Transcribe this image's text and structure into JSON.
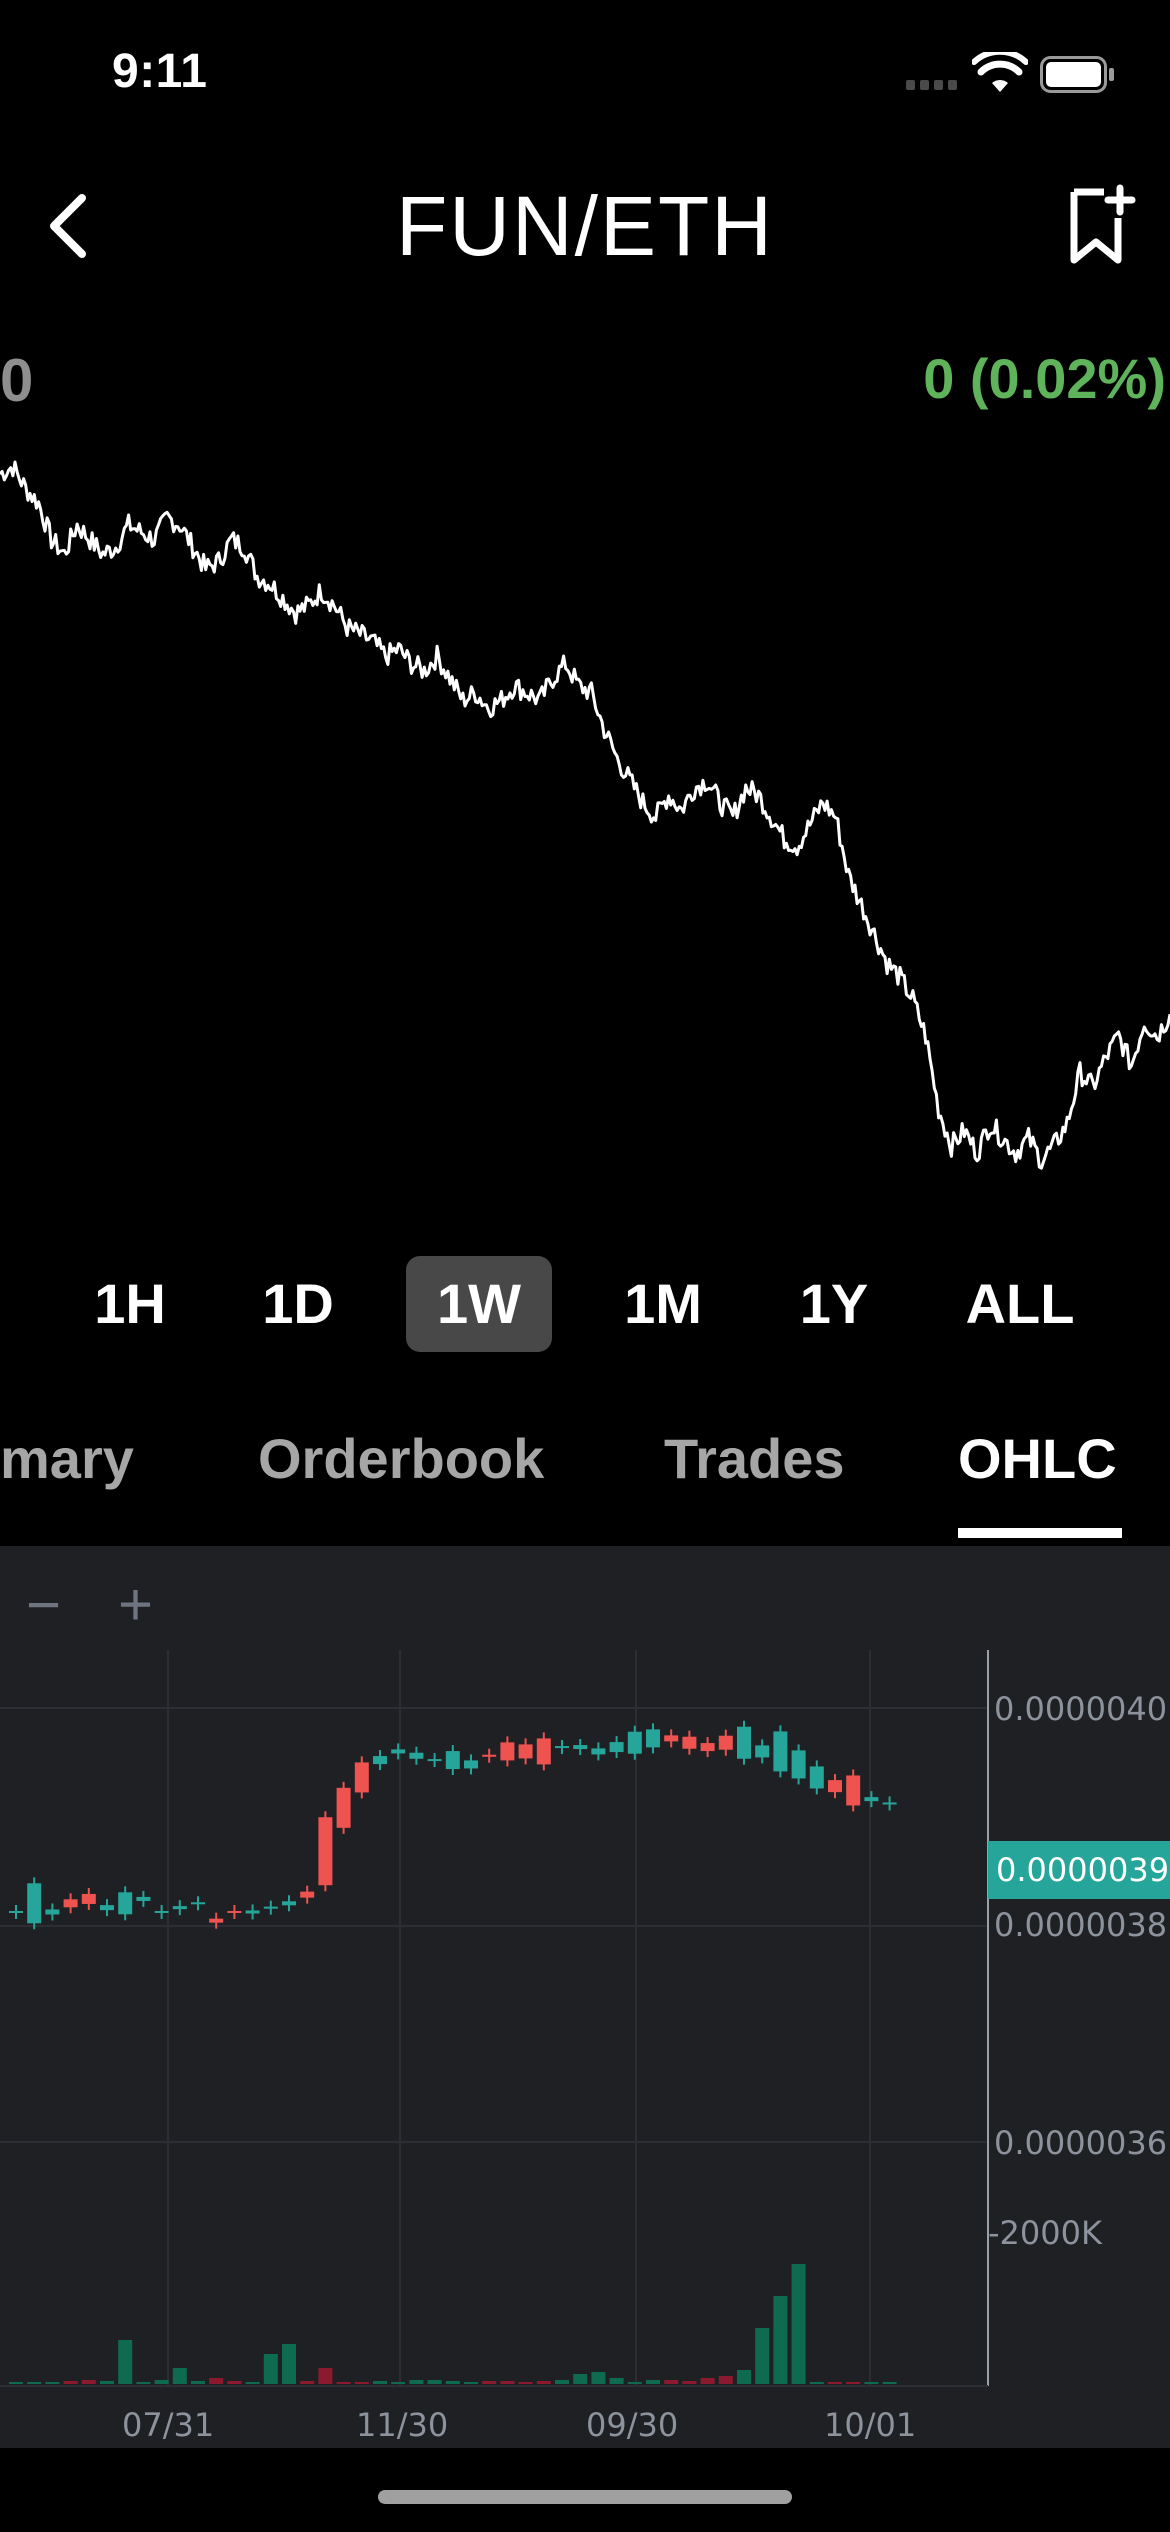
{
  "status_bar": {
    "time": "9:11"
  },
  "nav": {
    "title": "FUN/ETH",
    "back_icon": "chevron-left-icon",
    "watchlist_icon": "bookmark-add-icon"
  },
  "price": {
    "value": "0",
    "change": "0 (0.02%)",
    "change_color": "#5fb35a"
  },
  "ranges": [
    {
      "label": "1H",
      "active": false
    },
    {
      "label": "1D",
      "active": false
    },
    {
      "label": "1W",
      "active": true
    },
    {
      "label": "1M",
      "active": false
    },
    {
      "label": "1Y",
      "active": false
    },
    {
      "label": "ALL",
      "active": false
    }
  ],
  "tabs": [
    {
      "label": "mary",
      "active": false
    },
    {
      "label": "Orderbook",
      "active": false
    },
    {
      "label": "Trades",
      "active": false
    },
    {
      "label": "OHLC",
      "active": true
    }
  ],
  "ohlc": {
    "zoom_out": "−",
    "zoom_in": "+",
    "price_axis": [
      "0.0000040",
      "0.0000038",
      "0.0000036"
    ],
    "volume_axis": "-2000K",
    "current_price": "0.0000039",
    "time_axis": [
      "07/31",
      "11/30",
      "09/30",
      "10/01"
    ],
    "up_color": "#26a69a",
    "down_color": "#ef5350"
  },
  "chart_data": {
    "type": "line",
    "title": "",
    "xlabel": "",
    "ylabel": "",
    "note_values": "relative price shape, no axis labels shown",
    "values": [
      0.97,
      0.98,
      0.95,
      0.93,
      0.88,
      0.86,
      0.9,
      0.88,
      0.86,
      0.87,
      0.9,
      0.89,
      0.88,
      0.91,
      0.9,
      0.87,
      0.84,
      0.85,
      0.88,
      0.87,
      0.83,
      0.82,
      0.8,
      0.78,
      0.79,
      0.81,
      0.79,
      0.76,
      0.75,
      0.74,
      0.72,
      0.73,
      0.71,
      0.7,
      0.72,
      0.69,
      0.66,
      0.67,
      0.65,
      0.66,
      0.68,
      0.67,
      0.66,
      0.69,
      0.71,
      0.68,
      0.67,
      0.62,
      0.58,
      0.55,
      0.52,
      0.5,
      0.53,
      0.51,
      0.54,
      0.55,
      0.52,
      0.5,
      0.54,
      0.53,
      0.5,
      0.47,
      0.46,
      0.49,
      0.52,
      0.5,
      0.42,
      0.38,
      0.34,
      0.3,
      0.28,
      0.25,
      0.2,
      0.1,
      0.05,
      0.07,
      0.04,
      0.08,
      0.06,
      0.04,
      0.06,
      0.03,
      0.05,
      0.08,
      0.15,
      0.13,
      0.17,
      0.2,
      0.16,
      0.22,
      0.2,
      0.23
    ]
  }
}
